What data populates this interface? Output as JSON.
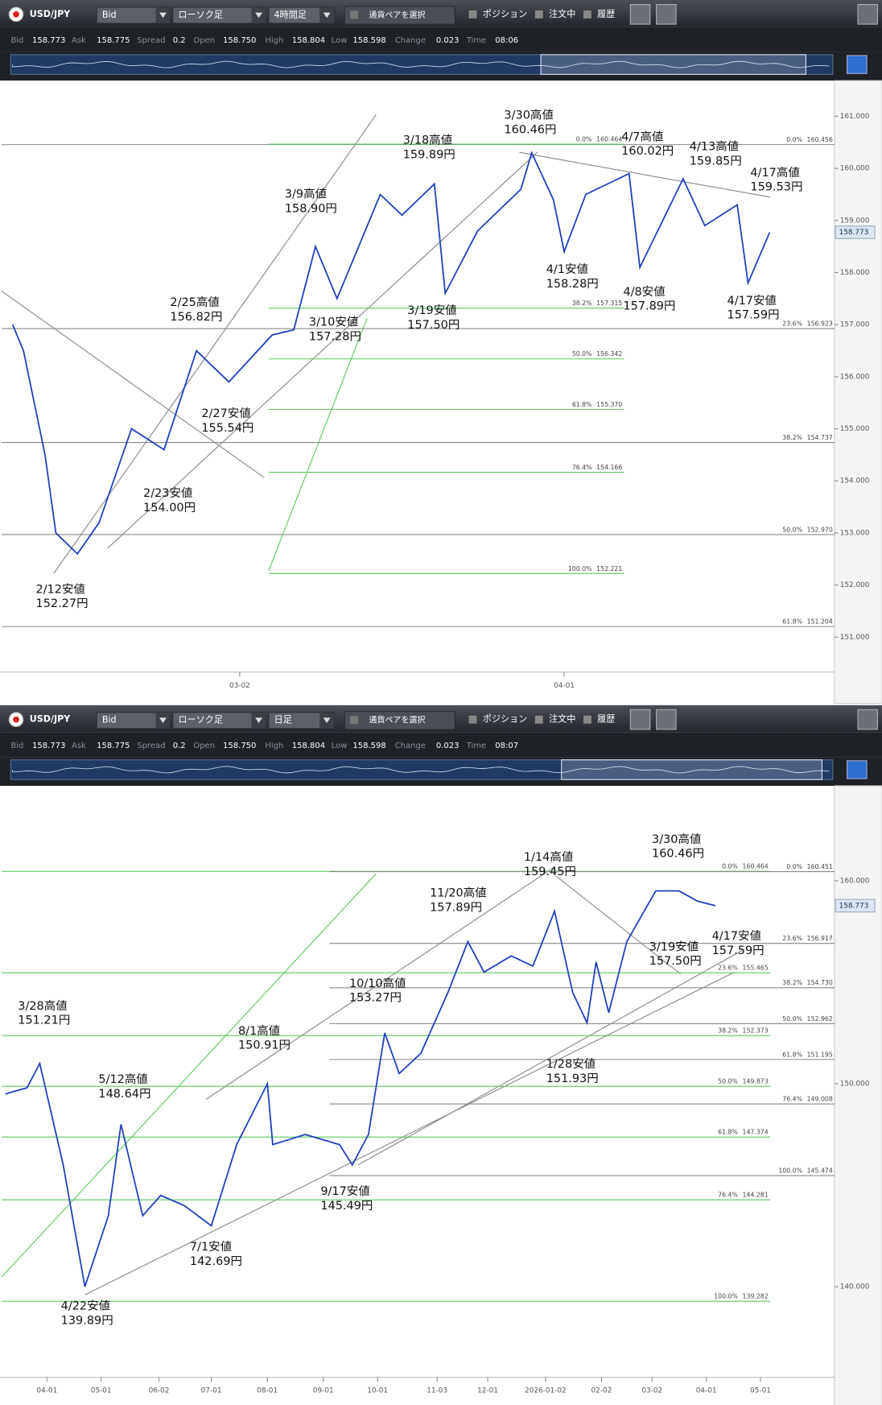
{
  "panels": [
    {
      "symbol": "USD/JPY",
      "price_side": "Bid",
      "chart_style": "ローソク足",
      "timeframe": "4時間足",
      "pair_button": "通貨ペアを選択",
      "checkboxes": [
        "ポジション",
        "注文中",
        "履歴"
      ],
      "info": [
        {
          "label": "Bid",
          "value": "158.773"
        },
        {
          "label": "Ask",
          "value": "158.775"
        },
        {
          "label": "Spread",
          "value": "0.2"
        },
        {
          "label": "Open",
          "value": "158.750"
        },
        {
          "label": "High",
          "value": "158.804"
        },
        {
          "label": "Low",
          "value": "158.598"
        },
        {
          "label": "Change",
          "value": "0.023"
        },
        {
          "label": "Time",
          "value": "08:06"
        }
      ]
    },
    {
      "symbol": "USD/JPY",
      "price_side": "Bid",
      "chart_style": "ローソク足",
      "timeframe": "日足",
      "pair_button": "通貨ペアを選択",
      "checkboxes": [
        "ポジション",
        "注文中",
        "履歴"
      ],
      "info": [
        {
          "label": "Bid",
          "value": "158.773"
        },
        {
          "label": "Ask",
          "value": "158.775"
        },
        {
          "label": "Spread",
          "value": "0.2"
        },
        {
          "label": "Open",
          "value": "158.750"
        },
        {
          "label": "High",
          "value": "158.804"
        },
        {
          "label": "Low",
          "value": "158.598"
        },
        {
          "label": "Change",
          "value": "0.023"
        },
        {
          "label": "Time",
          "value": "08:07"
        }
      ]
    }
  ],
  "chart_data": [
    {
      "type": "line",
      "color": "#1f3fbf",
      "x": [
        "02-09",
        "02-10",
        "02-12",
        "02-13",
        "02-15",
        "02-17",
        "02-20",
        "02-23",
        "02-26",
        "03-01",
        "03-05",
        "03-07",
        "03-09",
        "03-11",
        "03-15",
        "03-17",
        "03-20",
        "03-21",
        "03-24",
        "03-28",
        "03-29",
        "03-31",
        "04-01",
        "04-03",
        "04-07",
        "04-08",
        "04-12",
        "04-14",
        "04-17",
        "04-18",
        "04-20"
      ],
      "values": [
        157.0,
        156.5,
        154.5,
        153.0,
        152.6,
        153.2,
        155.0,
        154.6,
        156.5,
        155.9,
        156.8,
        156.9,
        158.5,
        157.5,
        159.5,
        159.1,
        159.7,
        157.6,
        158.8,
        159.6,
        160.3,
        159.4,
        158.4,
        159.5,
        159.9,
        158.1,
        159.8,
        158.9,
        159.3,
        157.8,
        158.77
      ],
      "xlim": [
        "02-08",
        "04-26"
      ],
      "xticks": [
        "03-02",
        "04-01"
      ],
      "ylim": [
        150.33,
        161.65
      ],
      "yticks": [
        {
          "value": 151,
          "label": "151.000"
        },
        {
          "value": 152,
          "label": "152.000"
        },
        {
          "value": 153,
          "label": "153.000"
        },
        {
          "value": 154,
          "label": "154.000"
        },
        {
          "value": 155,
          "label": "155.000"
        },
        {
          "value": 156,
          "label": "156.000"
        },
        {
          "value": 157,
          "label": "157.000"
        },
        {
          "value": 158,
          "label": "158.000"
        },
        {
          "value": 159,
          "label": "159.000"
        },
        {
          "value": 160,
          "label": "160.000"
        },
        {
          "value": 161,
          "label": "161.000"
        }
      ],
      "current_price": 158.773,
      "fib_sets": [
        {
          "color": "#888888",
          "levels": [
            {
              "ratio": "0.0%",
              "price": {
                "value": 160.456,
                "label": "160.456"
              }
            },
            {
              "ratio": "23.6%",
              "price": {
                "value": 156.923,
                "label": "156.923"
              }
            },
            {
              "ratio": "38.2%",
              "price": {
                "value": 154.737,
                "label": "154.737"
              }
            },
            {
              "ratio": "50.0%",
              "price": {
                "value": 152.97,
                "label": "152.970"
              }
            },
            {
              "ratio": "61.8%",
              "price": {
                "value": 151.204,
                "label": "151.204"
              }
            }
          ]
        },
        {
          "color": "#5cc85c",
          "levels": [
            {
              "ratio": "0.0%",
              "price": {
                "value": 160.464,
                "label": "160.464"
              }
            },
            {
              "ratio": "38.2%",
              "price": {
                "value": 157.315,
                "label": "157.315"
              }
            },
            {
              "ratio": "50.0%",
              "price": {
                "value": 156.342,
                "label": "156.342"
              }
            },
            {
              "ratio": "61.8%",
              "price": {
                "value": 155.37,
                "label": "155.370"
              }
            },
            {
              "ratio": "76.4%",
              "price": {
                "value": 154.166,
                "label": "154.166"
              }
            },
            {
              "ratio": "100.0%",
              "price": {
                "value": 152.221,
                "label": "152.221"
              }
            }
          ]
        }
      ],
      "annotations": [
        {
          "label": "2/12安値",
          "price": "152.27円"
        },
        {
          "label": "2/23安値",
          "price": "154.00円"
        },
        {
          "label": "2/25高値",
          "price": "156.82円"
        },
        {
          "label": "2/27安値",
          "price": "155.54円"
        },
        {
          "label": "3/9高値",
          "price": "158.90円"
        },
        {
          "label": "3/10安値",
          "price": "157.28円"
        },
        {
          "label": "3/18高値",
          "price": "159.89円"
        },
        {
          "label": "3/19安値",
          "price": "157.50円"
        },
        {
          "label": "3/30高値",
          "price": "160.46円"
        },
        {
          "label": "4/1安値",
          "price": "158.28円"
        },
        {
          "label": "4/7高値",
          "price": "160.02円"
        },
        {
          "label": "4/8安値",
          "price": "157.89円"
        },
        {
          "label": "4/13高値",
          "price": "159.85円"
        },
        {
          "label": "4/17高値",
          "price": "159.53円"
        },
        {
          "label": "4/17安値",
          "price": "157.59円"
        }
      ]
    },
    {
      "type": "line",
      "color": "#1f3fbf",
      "x": [
        "03-09",
        "03-21",
        "03-28",
        "04-10",
        "04-22",
        "05-05",
        "05-12",
        "05-24",
        "06-03",
        "06-16",
        "07-01",
        "07-15",
        "08-01",
        "08-04",
        "08-22",
        "09-10",
        "09-17",
        "09-26",
        "10-05",
        "10-13",
        "10-25",
        "11-09",
        "11-20",
        "11-29",
        "12-14",
        "12-26",
        "01-07",
        "01-17",
        "01-25",
        "01-30",
        "02-06",
        "02-16",
        "03-04",
        "03-17",
        "03-27",
        "04-06"
      ],
      "values": [
        149.5,
        149.8,
        151.0,
        146.0,
        140.0,
        143.5,
        148.0,
        143.5,
        144.5,
        144.0,
        143.0,
        147.0,
        150.0,
        147.0,
        147.5,
        147.0,
        146.0,
        147.5,
        152.5,
        150.5,
        151.5,
        154.5,
        157.0,
        155.5,
        156.3,
        155.8,
        158.5,
        154.5,
        153.0,
        156.0,
        153.5,
        157.0,
        159.5,
        159.5,
        159.0,
        158.77
      ],
      "xlim": [
        "03-07",
        "06-11"
      ],
      "xticks": [
        "04-01",
        "05-01",
        "06-02",
        "07-01",
        "08-01",
        "09-01",
        "10-01",
        "11-03",
        "12-01",
        "2026-01-02",
        "02-02",
        "03-02",
        "04-01",
        "05-01"
      ],
      "ylim": [
        135.54,
        164.59
      ],
      "yticks": [
        {
          "value": 140,
          "label": "140.000"
        },
        {
          "value": 150,
          "label": "150.000"
        },
        {
          "value": 160,
          "label": "160.000"
        }
      ],
      "current_price": 158.773,
      "fib_sets": [
        {
          "color": "#5cc85c",
          "levels": [
            {
              "ratio": "0.0%",
              "price": {
                "value": 160.464,
                "label": "160.464"
              }
            },
            {
              "ratio": "23.6%",
              "price": {
                "value": 155.465,
                "label": "155.465"
              }
            },
            {
              "ratio": "38.2%",
              "price": {
                "value": 152.373,
                "label": "152.373"
              }
            },
            {
              "ratio": "50.0%",
              "price": {
                "value": 149.873,
                "label": "149.873"
              }
            },
            {
              "ratio": "61.8%",
              "price": {
                "value": 147.374,
                "label": "147.374"
              }
            },
            {
              "ratio": "76.4%",
              "price": {
                "value": 144.281,
                "label": "144.281"
              }
            },
            {
              "ratio": "100.0%",
              "price": {
                "value": 139.282,
                "label": "139.282"
              }
            }
          ]
        },
        {
          "color": "#888888",
          "levels": [
            {
              "ratio": "0.0%",
              "price": {
                "value": 160.451,
                "label": "160.451"
              }
            },
            {
              "ratio": "23.6%",
              "price": {
                "value": 156.917,
                "label": "156.917"
              }
            },
            {
              "ratio": "38.2%",
              "price": {
                "value": 154.73,
                "label": "154.730"
              }
            },
            {
              "ratio": "50.0%",
              "price": {
                "value": 152.962,
                "label": "152.962"
              }
            },
            {
              "ratio": "61.8%",
              "price": {
                "value": 151.195,
                "label": "151.195"
              }
            },
            {
              "ratio": "76.4%",
              "price": {
                "value": 149.008,
                "label": "149.008"
              }
            },
            {
              "ratio": "100.0%",
              "price": {
                "value": 145.474,
                "label": "145.474"
              }
            }
          ]
        }
      ],
      "annotations": [
        {
          "label": "3/28高値",
          "price": "151.21円"
        },
        {
          "label": "5/12高値",
          "price": "148.64円"
        },
        {
          "label": "4/22安値",
          "price": "139.89円"
        },
        {
          "label": "7/1安値",
          "price": "142.69円"
        },
        {
          "label": "8/1高値",
          "price": "150.91円"
        },
        {
          "label": "9/17安値",
          "price": "145.49円"
        },
        {
          "label": "10/10高値",
          "price": "153.27円"
        },
        {
          "label": "11/20高値",
          "price": "157.89円"
        },
        {
          "label": "1/14高値",
          "price": "159.45円"
        },
        {
          "label": "1/28安値",
          "price": "151.93円"
        },
        {
          "label": "3/30高値",
          "price": "160.46円"
        },
        {
          "label": "3/19安値",
          "price": "157.50円"
        },
        {
          "label": "4/17安値",
          "price": "157.59円"
        }
      ]
    }
  ]
}
